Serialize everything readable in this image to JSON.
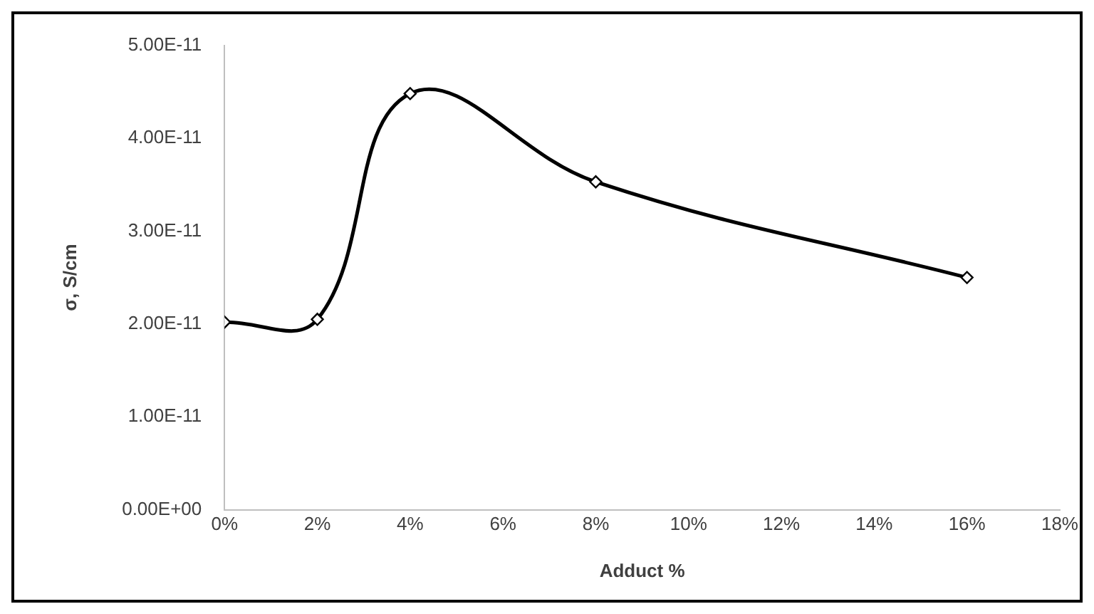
{
  "chart_data": {
    "type": "line",
    "xlabel": "Adduct %",
    "ylabel": "σ, S/cm",
    "x": [
      0,
      2,
      4,
      8,
      16
    ],
    "series": [
      {
        "color": "#000000",
        "values": [
          2.02e-11,
          2.05e-11,
          4.48e-11,
          3.53e-11,
          2.5e-11
        ]
      }
    ],
    "xlim": [
      0,
      18
    ],
    "xticks": [
      {
        "value": 0,
        "label": "0%"
      },
      {
        "value": 2,
        "label": "2%"
      },
      {
        "value": 4,
        "label": "4%"
      },
      {
        "value": 6,
        "label": "6%"
      },
      {
        "value": 8,
        "label": "8%"
      },
      {
        "value": 10,
        "label": "10%"
      },
      {
        "value": 12,
        "label": "12%"
      },
      {
        "value": 14,
        "label": "14%"
      },
      {
        "value": 16,
        "label": "16%"
      },
      {
        "value": 18,
        "label": "18%"
      }
    ],
    "ylim": [
      0,
      5e-11
    ],
    "yticks": [
      {
        "value": 0,
        "label": "0.00E+00"
      },
      {
        "value": 1e-11,
        "label": "1.00E-11"
      },
      {
        "value": 2e-11,
        "label": "2.00E-11"
      },
      {
        "value": 3e-11,
        "label": "3.00E-11"
      },
      {
        "value": 4e-11,
        "label": "4.00E-11"
      },
      {
        "value": 5e-11,
        "label": "5.00E-11"
      }
    ],
    "grid": false,
    "legend": false,
    "marker": "diamond",
    "line_style": "solid"
  }
}
